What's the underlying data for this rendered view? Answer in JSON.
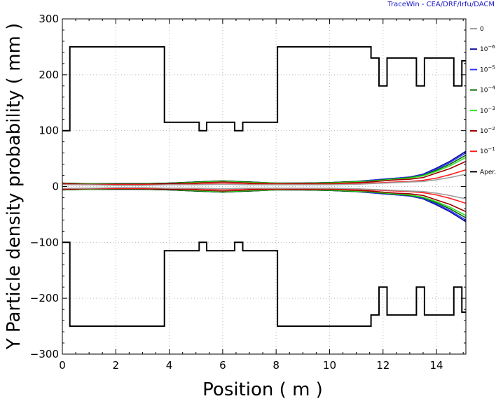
{
  "credit": "TraceWin - CEA/DRF/Irfu/DACM",
  "chart_data": {
    "type": "line",
    "title": "",
    "xlabel": "Position ( m )",
    "ylabel": "Y Particle density probability ( mm )",
    "xlim": [
      0,
      15.1
    ],
    "ylim": [
      -300,
      300
    ],
    "x_ticks": [
      0,
      2,
      4,
      6,
      8,
      10,
      12,
      14
    ],
    "y_ticks": [
      -300,
      -200,
      -100,
      0,
      100,
      200,
      300
    ],
    "x_tick_labels": [
      "0",
      "2",
      "4",
      "6",
      "8",
      "10",
      "12",
      "14"
    ],
    "y_tick_labels": [
      "−300",
      "−200",
      "−100",
      "0",
      "100",
      "200",
      "300"
    ],
    "grid": true,
    "legend_position": "right",
    "colors": {
      "s0": "#a0a0a0",
      "s6": "#1010a0",
      "s5": "#3030ff",
      "s4": "#007000",
      "s3": "#30e030",
      "s2": "#a00000",
      "s1": "#ff2020",
      "aper": "#000000"
    },
    "legend": [
      {
        "key": "s0",
        "base": "0",
        "exp": ""
      },
      {
        "key": "s6",
        "base": "10",
        "exp": "−6"
      },
      {
        "key": "s5",
        "base": "10",
        "exp": "−5"
      },
      {
        "key": "s4",
        "base": "10",
        "exp": "−4"
      },
      {
        "key": "s3",
        "base": "10",
        "exp": "−3"
      },
      {
        "key": "s2",
        "base": "10",
        "exp": "−2"
      },
      {
        "key": "s1",
        "base": "10",
        "exp": "−1"
      },
      {
        "key": "aper",
        "base": "Aper.",
        "exp": ""
      }
    ],
    "aperture_upper": {
      "x": [
        0,
        0.28,
        0.28,
        3.82,
        3.82,
        5.12,
        5.12,
        5.4,
        5.4,
        6.45,
        6.45,
        6.75,
        6.75,
        8.05,
        8.05,
        11.55,
        11.55,
        11.85,
        11.85,
        12.15,
        12.15,
        13.25,
        13.25,
        13.55,
        13.55,
        14.65,
        14.65,
        14.95,
        14.95,
        15.1
      ],
      "y": [
        100,
        100,
        250,
        250,
        115,
        115,
        100,
        100,
        115,
        115,
        100,
        100,
        115,
        115,
        250,
        250,
        230,
        230,
        180,
        180,
        230,
        230,
        180,
        180,
        230,
        230,
        180,
        180,
        225,
        225
      ]
    },
    "aperture_lower": {
      "x": [
        0,
        0.28,
        0.28,
        3.82,
        3.82,
        5.12,
        5.12,
        5.4,
        5.4,
        6.45,
        6.45,
        6.75,
        6.75,
        8.05,
        8.05,
        11.55,
        11.55,
        11.85,
        11.85,
        12.15,
        12.15,
        13.25,
        13.25,
        13.55,
        13.55,
        14.65,
        14.65,
        14.95,
        14.95,
        15.1
      ],
      "y": [
        -100,
        -100,
        -250,
        -250,
        -115,
        -115,
        -100,
        -100,
        -115,
        -115,
        -100,
        -100,
        -115,
        -115,
        -250,
        -250,
        -230,
        -230,
        -180,
        -180,
        -230,
        -230,
        -180,
        -180,
        -230,
        -230,
        -180,
        -180,
        -225,
        -225
      ]
    },
    "envelope_x": [
      0,
      1,
      2,
      3,
      4,
      5,
      6,
      7,
      8,
      9,
      10,
      11,
      11.5,
      12,
      12.5,
      13,
      13.5,
      14,
      14.5,
      15.1
    ],
    "series": [
      {
        "name": "10^-6",
        "key": "s6",
        "values": [
          6,
          5,
          5,
          5,
          6,
          8,
          10,
          8,
          6,
          6,
          7,
          9,
          11,
          13,
          15,
          17,
          22,
          33,
          45,
          63
        ]
      },
      {
        "name": "10^-5",
        "key": "s5",
        "values": [
          6,
          5,
          5,
          5,
          6,
          8,
          10,
          8,
          6,
          6,
          7,
          9,
          11,
          13,
          15,
          17,
          21,
          31,
          43,
          60
        ]
      },
      {
        "name": "10^-4",
        "key": "s4",
        "values": [
          6,
          5,
          5,
          5,
          6,
          8,
          10,
          8,
          6,
          6,
          7,
          9,
          10,
          12,
          14,
          16,
          20,
          29,
          40,
          56
        ]
      },
      {
        "name": "10^-3",
        "key": "s3",
        "values": [
          5,
          5,
          4,
          4,
          5,
          7,
          9,
          7,
          6,
          5,
          6,
          8,
          9,
          11,
          13,
          15,
          19,
          27,
          37,
          52
        ]
      },
      {
        "name": "10^-2",
        "key": "s2",
        "values": [
          5,
          4,
          4,
          4,
          5,
          6,
          8,
          6,
          5,
          5,
          5,
          7,
          8,
          10,
          12,
          13,
          16,
          24,
          32,
          45
        ]
      },
      {
        "name": "10^-1",
        "key": "s1",
        "values": [
          4,
          3,
          3,
          3,
          3,
          4,
          5,
          4,
          4,
          4,
          4,
          5,
          6,
          7,
          8,
          9,
          11,
          15,
          21,
          30
        ]
      },
      {
        "name": "0",
        "key": "s0",
        "values": [
          3,
          3,
          2,
          2,
          3,
          3,
          4,
          3,
          3,
          3,
          3,
          4,
          5,
          6,
          7,
          8,
          9,
          12,
          16,
          22
        ]
      }
    ]
  }
}
